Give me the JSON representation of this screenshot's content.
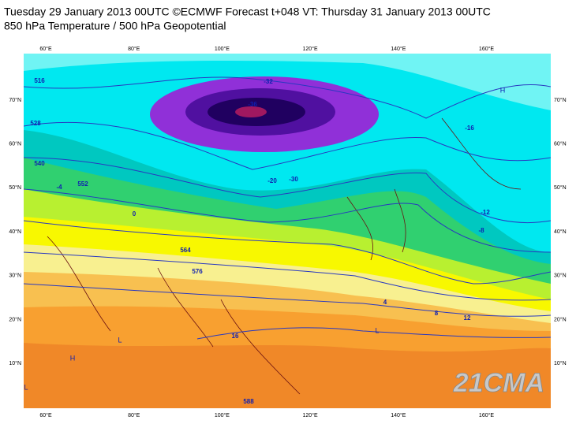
{
  "header": {
    "title": "Tuesday 29 January 2013 00UTC ©ECMWF Forecast t+048 VT: Thursday 31 January 2013 00UTC",
    "subtitle": "850 hPa Temperature / 500 hPa Geopotential"
  },
  "map": {
    "longitude_labels": [
      "60°E",
      "80°E",
      "100°E",
      "120°E",
      "140°E",
      "160°E"
    ],
    "latitude_labels": [
      "70°N",
      "60°N",
      "50°N",
      "40°N",
      "30°N",
      "20°N",
      "10°N"
    ],
    "contour_labels": [
      "516",
      "528",
      "540",
      "552",
      "564",
      "576",
      "588",
      "-36",
      "-32",
      "-30",
      "-20",
      "-16",
      "-12",
      "-8",
      "-4",
      "0",
      "4",
      "8",
      "12",
      "16"
    ],
    "pressure_marks": [
      "H",
      "L",
      "H",
      "L",
      "L"
    ],
    "watermark": "21CMA"
  }
}
